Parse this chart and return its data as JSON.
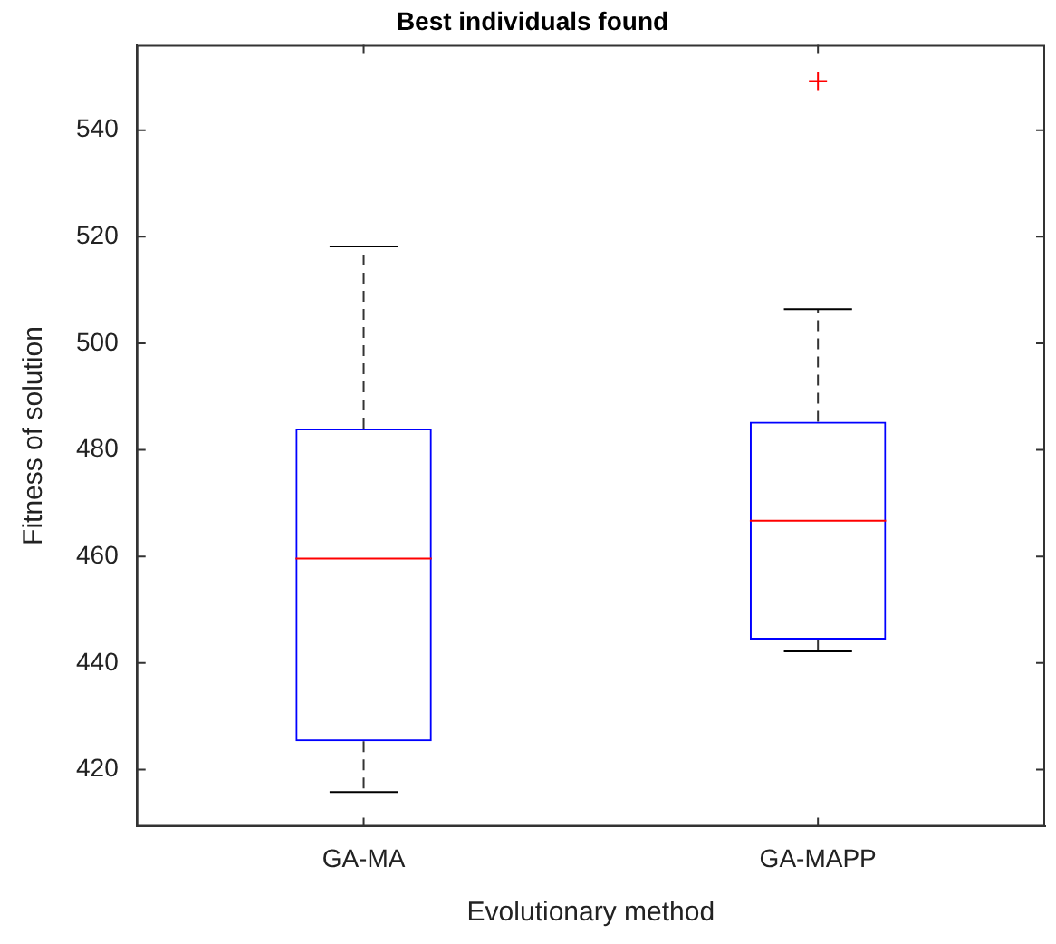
{
  "chart_data": {
    "type": "box",
    "title": "Best individuals found",
    "xlabel": "Evolutionary method",
    "ylabel": "Fitness of solution",
    "categories": [
      "GA-MA",
      "GA-MAPP"
    ],
    "boxes": [
      {
        "low": 415.8,
        "q1": 425.3,
        "median": 459.6,
        "q3": 484,
        "high": 518.2
      },
      {
        "low": 442.2,
        "q1": 444.4,
        "median": 466.7,
        "q3": 485.3,
        "high": 506.4,
        "outliers": [
          549.2
        ]
      }
    ],
    "color": "#0000ff",
    "ylim": [
      409.3,
      556
    ],
    "yticks": [
      420,
      440,
      460,
      480,
      500,
      520,
      540
    ],
    "grid": false
  }
}
